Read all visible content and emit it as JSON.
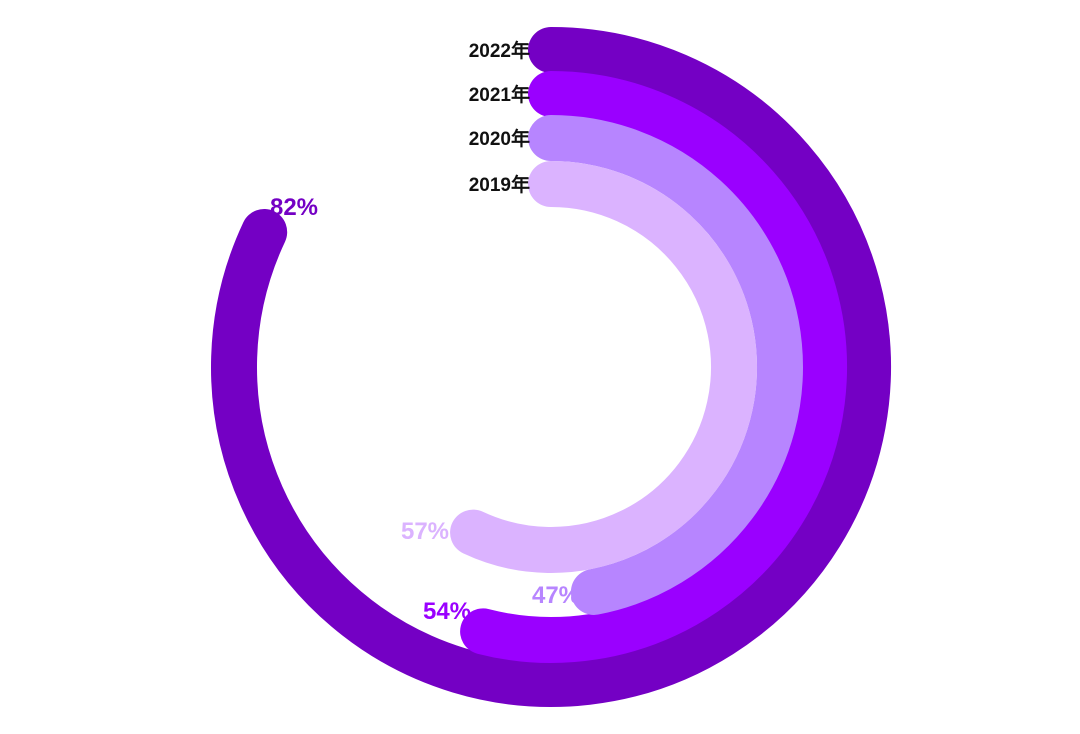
{
  "chart_data": {
    "type": "radial-bar",
    "series": [
      {
        "name": "2022年",
        "value": 82,
        "label": "82%",
        "color": "#7400c4"
      },
      {
        "name": "2021年",
        "value": 54,
        "label": "54%",
        "color": "#9a00ff"
      },
      {
        "name": "2020年",
        "value": 47,
        "label": "47%",
        "color": "#b785ff"
      },
      {
        "name": "2019年",
        "value": 57,
        "label": "57%",
        "color": "#dbb3ff"
      }
    ],
    "value_max": 100,
    "start": "12 o'clock",
    "direction": "clockwise",
    "legend": "year labels at the start of each ring"
  }
}
